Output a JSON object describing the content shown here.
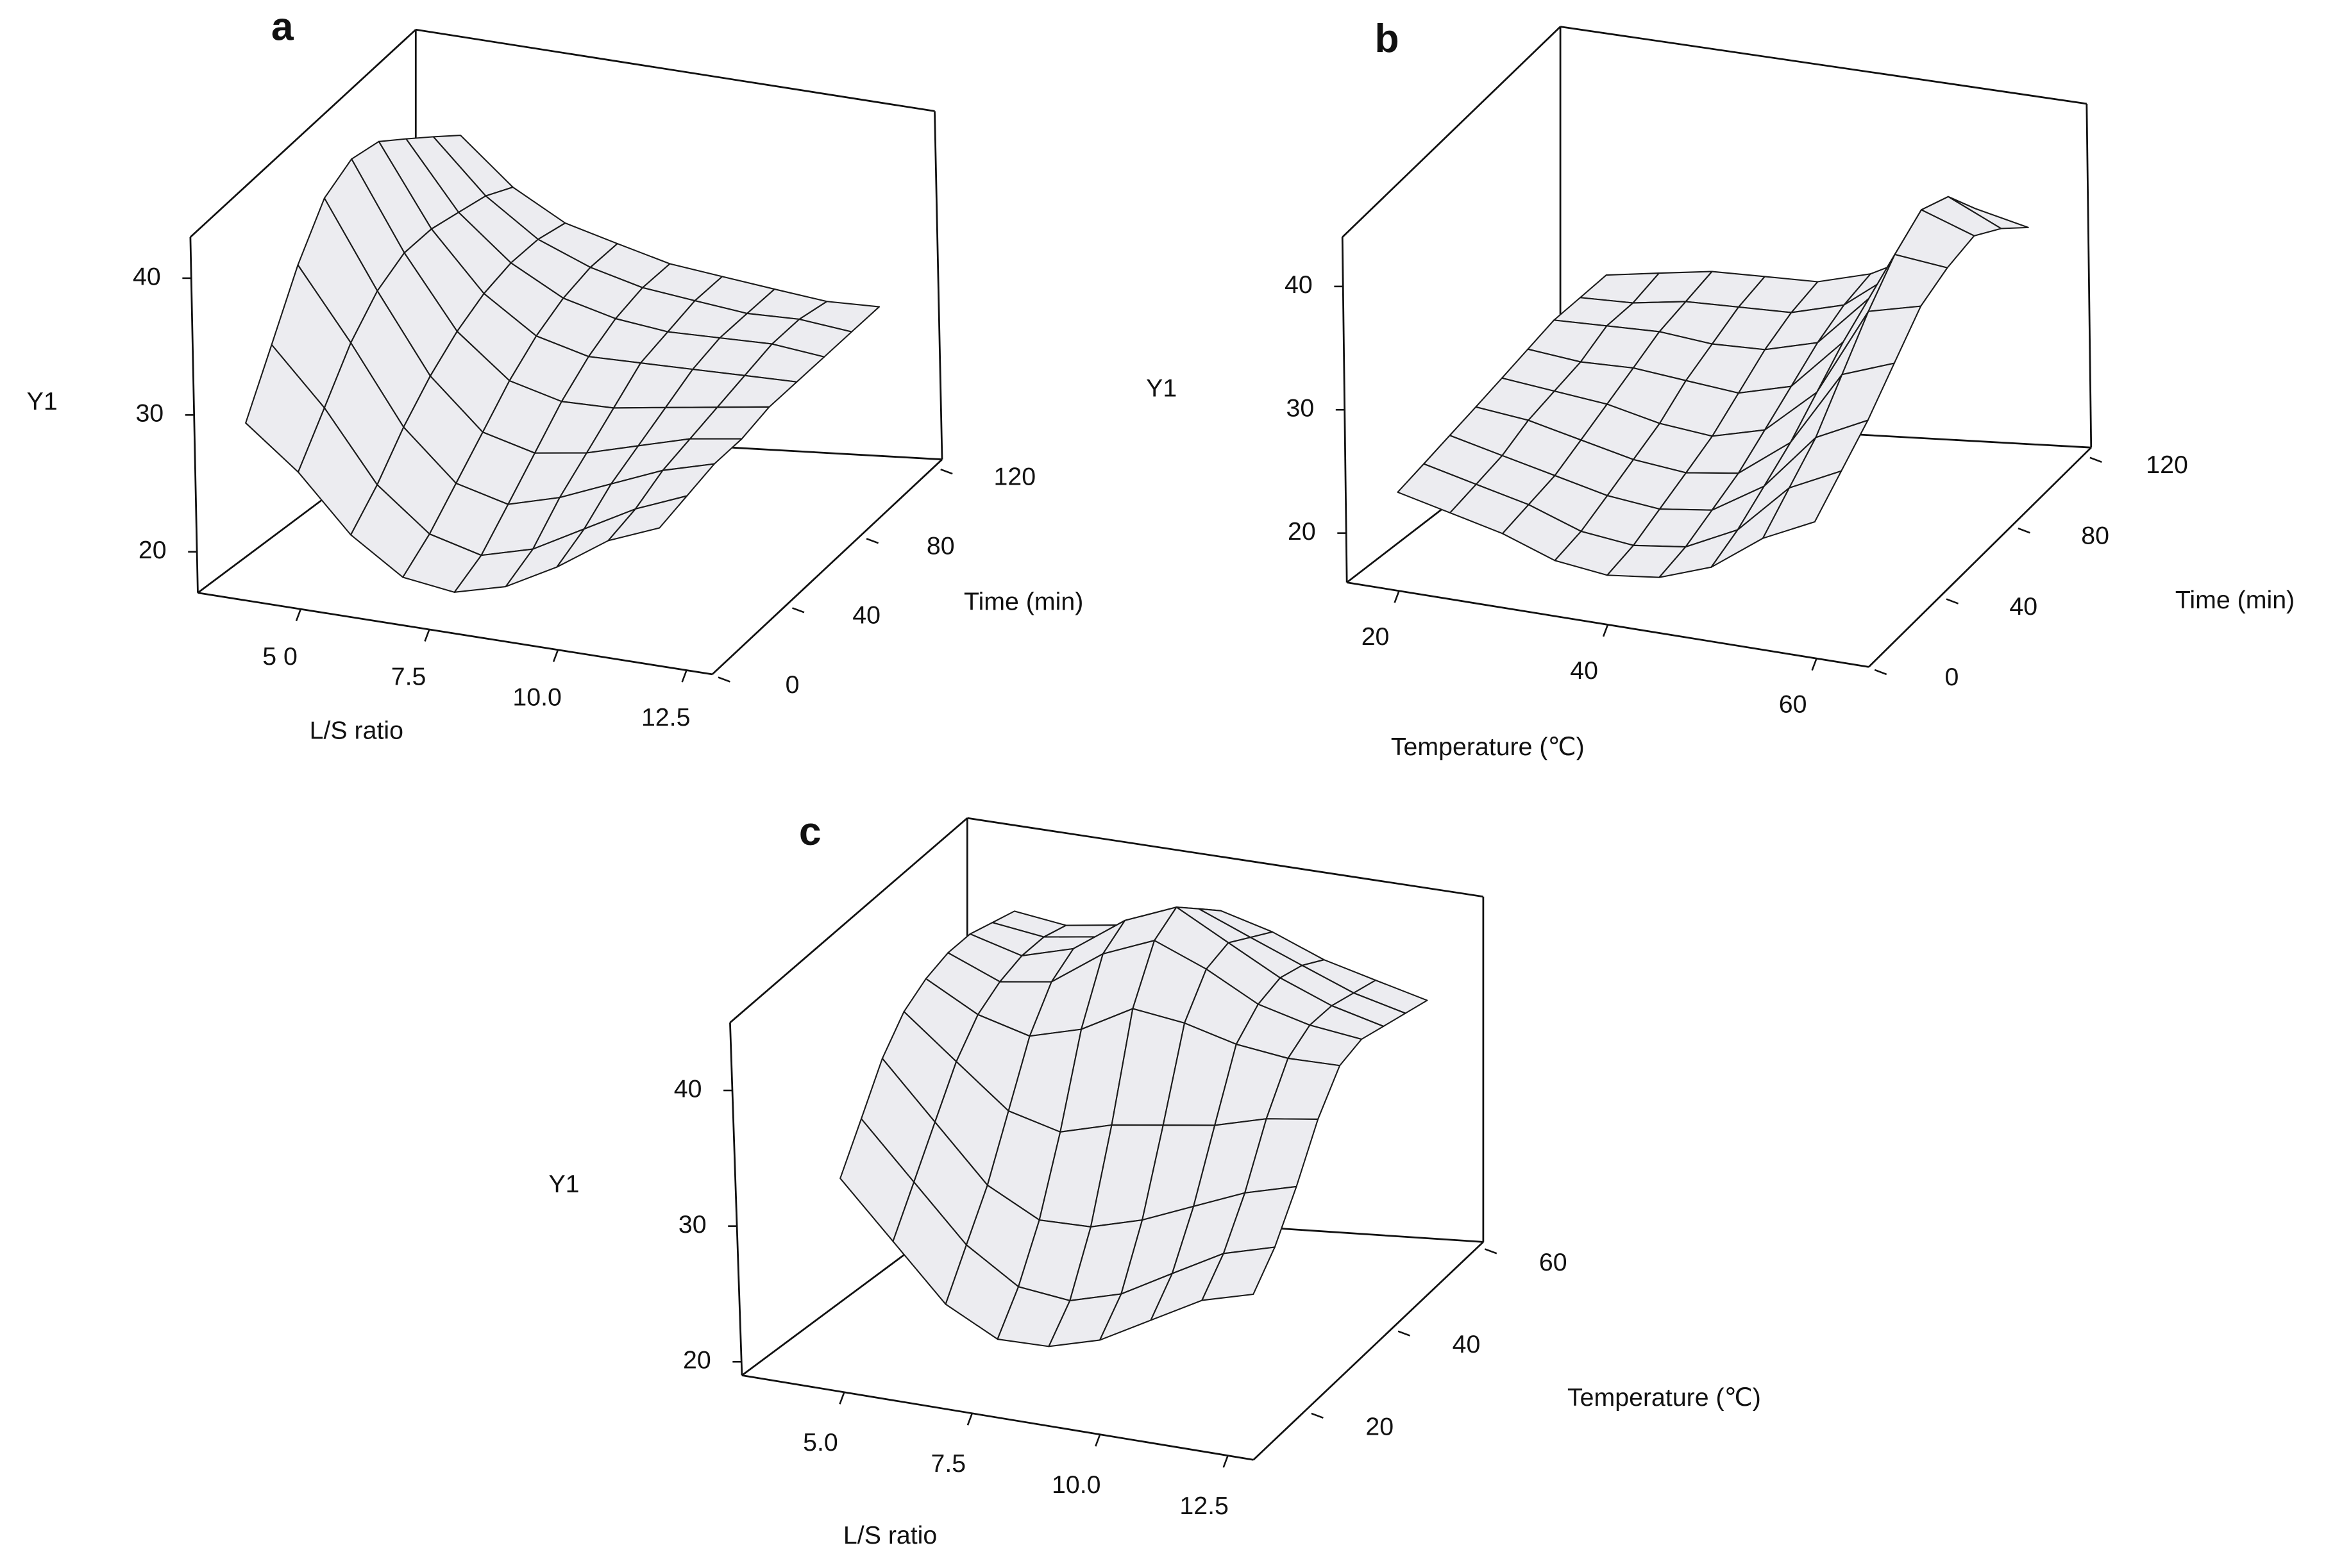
{
  "chart_data": [
    {
      "type": "surface",
      "title": "a",
      "xlabel": "L/S ratio",
      "ylabel": "Time (min)",
      "zlabel": "Y1",
      "color": "#ececf0",
      "xlim": [
        3,
        13
      ],
      "ylim": [
        0,
        124
      ],
      "zlim": [
        17,
        43
      ],
      "xticks": [
        {
          "value": 5,
          "label": "5 0"
        },
        7.5,
        {
          "value": 10,
          "label": "10.0"
        },
        12.5
      ],
      "yticks": [
        0,
        40,
        80,
        120
      ],
      "zticks": [
        20,
        30,
        40
      ],
      "x": [
        4,
        5,
        6,
        7,
        8,
        9,
        10,
        11,
        12
      ],
      "y": [
        0,
        15,
        30,
        45,
        60,
        75,
        90,
        105,
        120
      ],
      "z": [
        [
          30,
          27,
          23,
          20.5,
          20,
          21,
          23,
          25.5,
          27
        ],
        [
          34,
          30,
          25,
          22,
          21,
          22,
          24,
          26,
          27.5
        ],
        [
          38,
          33,
          27.5,
          24,
          23,
          24,
          25.5,
          27,
          28
        ],
        [
          41,
          35,
          29.5,
          26,
          25,
          25.5,
          26.5,
          27.5,
          28
        ],
        [
          42,
          36,
          31,
          28,
          27,
          27,
          27.5,
          28,
          28.5
        ],
        [
          41.5,
          36,
          32,
          29.5,
          28.5,
          28.5,
          28.5,
          28.5,
          28.5
        ],
        [
          40,
          35.5,
          32.5,
          30.5,
          29.5,
          29,
          29,
          29,
          28.5
        ],
        [
          38.5,
          35,
          32.5,
          31,
          30,
          29.5,
          29,
          29,
          28.5
        ],
        [
          37,
          34,
          32,
          31,
          30,
          29.5,
          29,
          28.5,
          28.5
        ]
      ]
    },
    {
      "type": "surface",
      "title": "b",
      "xlabel": "Temperature (℃)",
      "ylabel": "Time (min)",
      "zlabel": "Y1",
      "color": "#ececf0",
      "xlim": [
        15,
        65
      ],
      "ylim": [
        0,
        124
      ],
      "zlim": [
        16,
        44
      ],
      "xticks": [
        20,
        40,
        60
      ],
      "yticks": [
        0,
        40,
        80,
        120
      ],
      "zticks": [
        20,
        30,
        40
      ],
      "x": [
        20,
        25,
        30,
        35,
        40,
        45,
        50,
        55,
        60
      ],
      "y": [
        0,
        15,
        30,
        45,
        60,
        75,
        90,
        105,
        120
      ],
      "z": [
        [
          24,
          23,
          22,
          20.5,
          20,
          20.5,
          22,
          25,
          27
        ],
        [
          24.5,
          23.5,
          22.5,
          21,
          20.5,
          21,
          23,
          27,
          29
        ],
        [
          25,
          24,
          23,
          22,
          21.5,
          22,
          24.5,
          29,
          31
        ],
        [
          25.5,
          25,
          24,
          23,
          22.5,
          23,
          26,
          32,
          33.5
        ],
        [
          26,
          25.5,
          25,
          24,
          23.5,
          24.5,
          28,
          35,
          36
        ],
        [
          26.5,
          26,
          26,
          25.5,
          25,
          26,
          30,
          37.5,
          37
        ],
        [
          27,
          27,
          27,
          26.5,
          26.5,
          27.5,
          31.5,
          39,
          37.5
        ],
        [
          27,
          27,
          27.5,
          27.5,
          27.5,
          28.5,
          31.5,
          38,
          36
        ],
        [
          27,
          27.5,
          28,
          28,
          28,
          29,
          31,
          35,
          34
        ]
      ]
    },
    {
      "type": "surface",
      "title": "c",
      "xlabel": "L/S ratio",
      "ylabel": "Temperature (℃)",
      "zlabel": "Y1",
      "color": "#ececf0",
      "xlim": [
        3,
        13
      ],
      "ylim": [
        8,
        61
      ],
      "zlim": [
        19,
        45
      ],
      "xticks": [
        {
          "value": 5,
          "label": "5.0"
        },
        7.5,
        {
          "value": 10,
          "label": "10.0"
        },
        12.5
      ],
      "yticks": [
        20,
        40,
        60
      ],
      "zticks": [
        20,
        30,
        40
      ],
      "x": [
        4,
        5,
        6,
        7,
        8,
        9,
        10,
        11,
        12
      ],
      "y": [
        20,
        25,
        30,
        35,
        40,
        45,
        50,
        55,
        60
      ],
      "z": [
        [
          31,
          27,
          23,
          21,
          21,
          22,
          24,
          26,
          27
        ],
        [
          34,
          30,
          26,
          23.5,
          23,
          24,
          26,
          28,
          29
        ],
        [
          37,
          33,
          29,
          27,
          27,
          28,
          29.5,
          31,
          32
        ],
        [
          39,
          36,
          33,
          32,
          33,
          33.5,
          34,
          35,
          35.5
        ],
        [
          40,
          38,
          37,
          38,
          40,
          39.5,
          38.5,
          38,
          38
        ],
        [
          40.5,
          39,
          39.5,
          42,
          43.5,
          42,
          40,
          39,
          38.5
        ],
        [
          40.5,
          39.5,
          40.5,
          43,
          44.5,
          42.5,
          40.5,
          39,
          38
        ],
        [
          40,
          39.5,
          40,
          42,
          43,
          41.5,
          40,
          38.5,
          37.5
        ],
        [
          39.5,
          39,
          39.5,
          41,
          41.5,
          40.5,
          39,
          38,
          37
        ]
      ]
    }
  ]
}
